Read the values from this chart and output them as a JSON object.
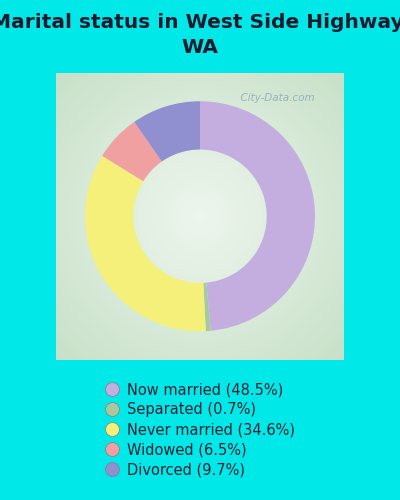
{
  "title": "Marital status in West Side Highway,\nWA",
  "slices": [
    {
      "label": "Now married (48.5%)",
      "value": 48.5,
      "color": "#c4aee0"
    },
    {
      "label": "Separated (0.7%)",
      "value": 0.7,
      "color": "#a8c8a0"
    },
    {
      "label": "Never married (34.6%)",
      "value": 34.6,
      "color": "#f4f07a"
    },
    {
      "label": "Widowed (6.5%)",
      "value": 6.5,
      "color": "#f0a0a0"
    },
    {
      "label": "Divorced (9.7%)",
      "value": 9.7,
      "color": "#9090d0"
    }
  ],
  "background_color": "#00e8e8",
  "donut_width": 0.42,
  "title_fontsize": 14.5,
  "legend_fontsize": 10.5,
  "watermark": "  City-Data.com"
}
